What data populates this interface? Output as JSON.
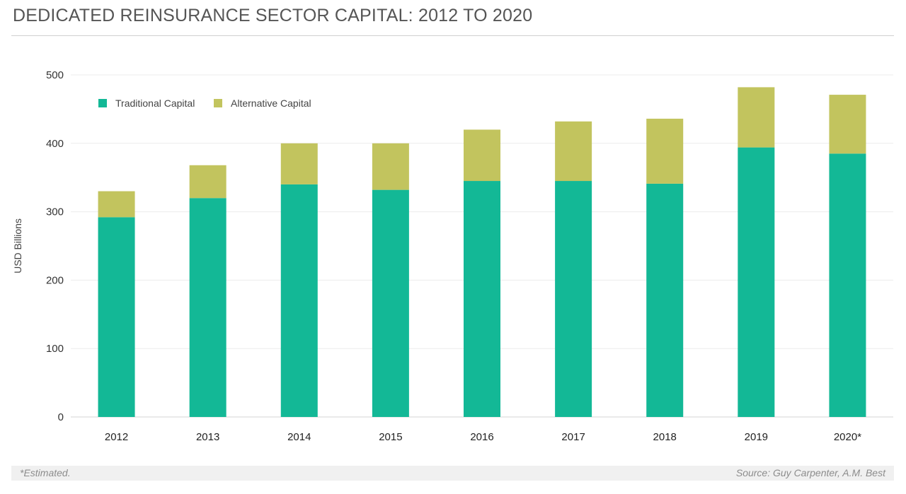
{
  "title": "DEDICATED REINSURANCE SECTOR CAPITAL: 2012 TO 2020",
  "footer": {
    "note": "*Estimated.",
    "source": "Source: Guy Carpenter, A.M. Best"
  },
  "chart_data": {
    "type": "bar",
    "stacked": true,
    "title": "DEDICATED REINSURANCE SECTOR CAPITAL: 2012 TO 2020",
    "xlabel": "",
    "ylabel": "USD Billions",
    "ylim": [
      0,
      500
    ],
    "yticks": [
      0,
      100,
      200,
      300,
      400,
      500
    ],
    "grid": true,
    "legend_position": "top-left",
    "categories": [
      "2012",
      "2013",
      "2014",
      "2015",
      "2016",
      "2017",
      "2018",
      "2019",
      "2020*"
    ],
    "series": [
      {
        "name": "Traditional Capital",
        "color": "#13b896",
        "values": [
          292,
          320,
          340,
          332,
          345,
          345,
          341,
          394,
          385
        ]
      },
      {
        "name": "Alternative Capital",
        "color": "#c2c45e",
        "values": [
          38,
          48,
          60,
          68,
          75,
          87,
          95,
          88,
          86
        ]
      }
    ]
  }
}
